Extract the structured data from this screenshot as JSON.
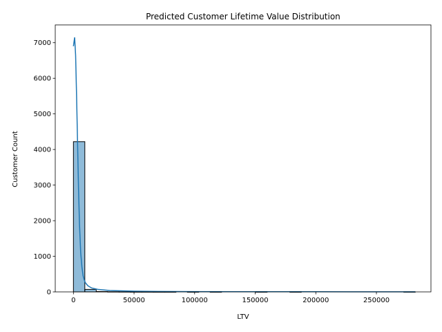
{
  "chart_data": {
    "type": "bar",
    "title": "Predicted Customer Lifetime Value Distribution",
    "xlabel": "LTV",
    "ylabel": "Customer Count",
    "xlim": [
      -15000,
      295000
    ],
    "ylim": [
      0,
      7500
    ],
    "x_ticks": [
      0,
      50000,
      100000,
      150000,
      200000,
      250000
    ],
    "y_ticks": [
      0,
      1000,
      2000,
      3000,
      4000,
      5000,
      6000,
      7000
    ],
    "grid": false,
    "legend": "none",
    "bar_color": "#1f77b4",
    "bar_opacity": 0.5,
    "bar_edge_color": "#000000",
    "bins": [
      {
        "x0": 0,
        "x1": 9400,
        "value": 4220
      },
      {
        "x0": 9400,
        "x1": 18800,
        "value": 70
      },
      {
        "x0": 18800,
        "x1": 28200,
        "value": 10
      },
      {
        "x0": 28200,
        "x1": 37600,
        "value": 5
      },
      {
        "x0": 37600,
        "x1": 47000,
        "value": 4
      },
      {
        "x0": 47000,
        "x1": 56400,
        "value": 2
      },
      {
        "x0": 56400,
        "x1": 65800,
        "value": 2
      },
      {
        "x0": 65800,
        "x1": 75200,
        "value": 1
      },
      {
        "x0": 75200,
        "x1": 84600,
        "value": 1
      },
      {
        "x0": 84600,
        "x1": 94000,
        "value": 0
      },
      {
        "x0": 94000,
        "x1": 103400,
        "value": 1
      },
      {
        "x0": 103400,
        "x1": 112800,
        "value": 0
      },
      {
        "x0": 112800,
        "x1": 122200,
        "value": 1
      },
      {
        "x0": 122200,
        "x1": 131600,
        "value": 0
      },
      {
        "x0": 131600,
        "x1": 141000,
        "value": 0
      },
      {
        "x0": 141000,
        "x1": 150400,
        "value": 0
      },
      {
        "x0": 150400,
        "x1": 159800,
        "value": 1
      },
      {
        "x0": 159800,
        "x1": 169200,
        "value": 0
      },
      {
        "x0": 169200,
        "x1": 178600,
        "value": 0
      },
      {
        "x0": 178600,
        "x1": 188000,
        "value": 1
      },
      {
        "x0": 188000,
        "x1": 197400,
        "value": 0
      },
      {
        "x0": 197400,
        "x1": 206800,
        "value": 0
      },
      {
        "x0": 206800,
        "x1": 216200,
        "value": 0
      },
      {
        "x0": 216200,
        "x1": 225600,
        "value": 0
      },
      {
        "x0": 225600,
        "x1": 235000,
        "value": 0
      },
      {
        "x0": 235000,
        "x1": 244400,
        "value": 0
      },
      {
        "x0": 244400,
        "x1": 253800,
        "value": 0
      },
      {
        "x0": 253800,
        "x1": 263200,
        "value": 0
      },
      {
        "x0": 263200,
        "x1": 272600,
        "value": 0
      },
      {
        "x0": 272600,
        "x1": 282000,
        "value": 1
      }
    ],
    "kde_line": {
      "color": "#1f77b4",
      "x": [
        0,
        1000,
        1800,
        2600,
        3400,
        4200,
        5000,
        6000,
        7000,
        8000,
        9000,
        10000,
        12000,
        15000,
        20000,
        30000,
        50000,
        70000,
        100000,
        150000,
        200000,
        250000,
        282000
      ],
      "y": [
        6900,
        7150,
        6650,
        5500,
        4200,
        2900,
        1900,
        1100,
        700,
        450,
        330,
        250,
        170,
        110,
        70,
        40,
        20,
        12,
        8,
        5,
        4,
        3,
        2
      ]
    }
  }
}
